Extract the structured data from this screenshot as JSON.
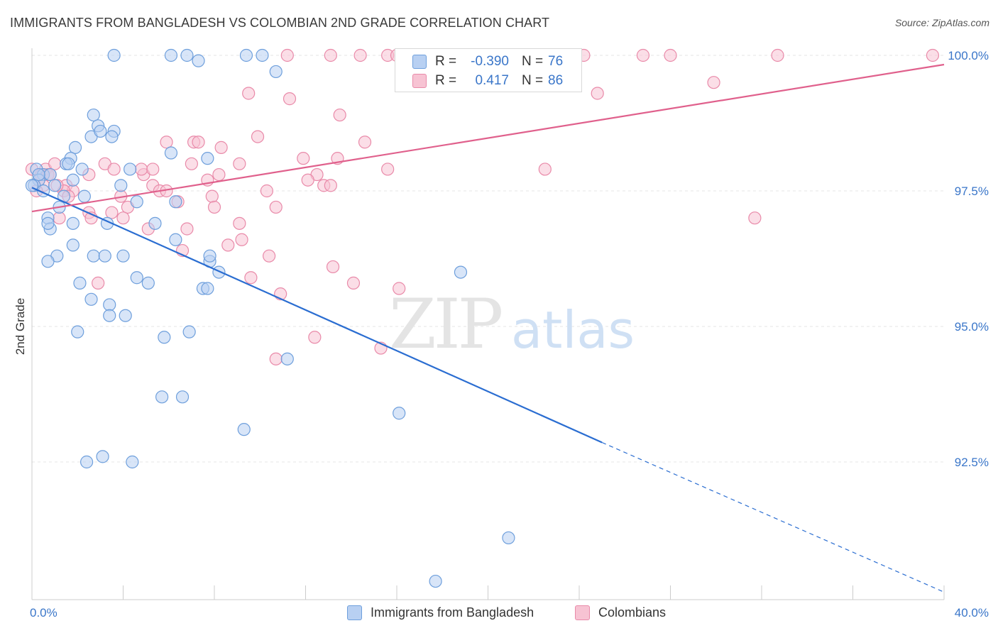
{
  "header": {
    "title": "IMMIGRANTS FROM BANGLADESH VS COLOMBIAN 2ND GRADE CORRELATION CHART",
    "source": "Source: ZipAtlas.com"
  },
  "watermark": {
    "zip": "ZIP",
    "atlas": "atlas"
  },
  "legend_stats": [
    {
      "r_label": "R =",
      "r_value": "-0.390",
      "n_label": "N =",
      "n_value": "76"
    },
    {
      "r_label": "R =",
      "r_value": "0.417",
      "n_label": "N =",
      "n_value": "86"
    }
  ],
  "bottom_legend": [
    "Immigrants from Bangladesh",
    "Colombians"
  ],
  "colors": {
    "blue_fill": "#b8d0f2",
    "blue_stroke": "#6e9fdc",
    "blue_line": "#2a6dd1",
    "pink_fill": "#f7c3d3",
    "pink_stroke": "#e98aa9",
    "pink_line": "#e0608c",
    "axis_label": "#3a76c9",
    "grid": "#e6e6e6"
  },
  "chart_data": {
    "type": "scatter",
    "title": "IMMIGRANTS FROM BANGLADESH VS COLOMBIAN 2ND GRADE CORRELATION CHART",
    "ylabel": "2nd Grade",
    "xlabel": "",
    "xlim": [
      0,
      40
    ],
    "ylim": [
      90.0,
      100.2
    ],
    "x_tick_labels": [
      "0.0%",
      "40.0%"
    ],
    "y_ticks": [
      92.5,
      95.0,
      97.5,
      100.0
    ],
    "y_tick_labels": [
      "92.5%",
      "95.0%",
      "97.5%",
      "100.0%"
    ],
    "grid": true,
    "series": [
      {
        "name": "Immigrants from Bangladesh",
        "color": "#6e9fdc",
        "r": -0.39,
        "n": 76,
        "trend": {
          "x0": 0.0,
          "y0": 97.56,
          "x1": 25.0,
          "y1": 92.86,
          "dash_to_x": 40.0,
          "dash_to_y": 90.1
        },
        "points": [
          [
            3.6,
            100.0
          ],
          [
            6.1,
            100.0
          ],
          [
            6.8,
            100.0
          ],
          [
            9.4,
            100.0
          ],
          [
            10.1,
            100.0
          ],
          [
            7.3,
            99.9
          ],
          [
            10.7,
            99.7
          ],
          [
            2.7,
            98.9
          ],
          [
            2.6,
            98.5
          ],
          [
            2.9,
            98.7
          ],
          [
            3.0,
            98.6
          ],
          [
            3.6,
            98.6
          ],
          [
            3.5,
            98.5
          ],
          [
            1.9,
            98.3
          ],
          [
            1.7,
            98.1
          ],
          [
            1.5,
            98.0
          ],
          [
            1.6,
            98.0
          ],
          [
            6.1,
            98.2
          ],
          [
            7.7,
            98.1
          ],
          [
            0.2,
            97.9
          ],
          [
            0.5,
            97.8
          ],
          [
            0.8,
            97.8
          ],
          [
            2.2,
            97.9
          ],
          [
            4.3,
            97.9
          ],
          [
            0.3,
            97.7
          ],
          [
            0.1,
            97.6
          ],
          [
            0.5,
            97.5
          ],
          [
            1.8,
            97.7
          ],
          [
            3.9,
            97.6
          ],
          [
            1.4,
            97.4
          ],
          [
            2.3,
            97.4
          ],
          [
            1.2,
            97.2
          ],
          [
            4.6,
            97.3
          ],
          [
            6.3,
            97.3
          ],
          [
            0.7,
            97.0
          ],
          [
            1.8,
            96.9
          ],
          [
            3.3,
            96.9
          ],
          [
            5.4,
            96.9
          ],
          [
            0.8,
            96.8
          ],
          [
            0.7,
            96.9
          ],
          [
            1.8,
            96.5
          ],
          [
            6.3,
            96.6
          ],
          [
            1.1,
            96.3
          ],
          [
            0.7,
            96.2
          ],
          [
            2.7,
            96.3
          ],
          [
            3.2,
            96.3
          ],
          [
            4.0,
            96.3
          ],
          [
            7.8,
            96.2
          ],
          [
            7.8,
            96.3
          ],
          [
            8.2,
            96.0
          ],
          [
            18.8,
            96.0
          ],
          [
            4.6,
            95.9
          ],
          [
            5.1,
            95.8
          ],
          [
            2.1,
            95.8
          ],
          [
            7.5,
            95.7
          ],
          [
            7.7,
            95.7
          ],
          [
            2.6,
            95.5
          ],
          [
            3.4,
            95.4
          ],
          [
            4.1,
            95.2
          ],
          [
            3.4,
            95.2
          ],
          [
            2.0,
            94.9
          ],
          [
            6.9,
            94.9
          ],
          [
            5.8,
            94.8
          ],
          [
            11.2,
            94.4
          ],
          [
            5.7,
            93.7
          ],
          [
            6.6,
            93.7
          ],
          [
            16.1,
            93.4
          ],
          [
            9.3,
            93.1
          ],
          [
            3.1,
            92.6
          ],
          [
            2.4,
            92.5
          ],
          [
            4.4,
            92.5
          ],
          [
            20.9,
            91.1
          ],
          [
            17.7,
            90.3
          ],
          [
            0.0,
            97.6
          ],
          [
            0.3,
            97.8
          ],
          [
            1.0,
            97.6
          ]
        ]
      },
      {
        "name": "Colombians",
        "color": "#e98aa9",
        "r": 0.417,
        "n": 86,
        "trend": {
          "x0": 0.0,
          "y0": 97.12,
          "x1": 40.0,
          "y1": 99.83
        },
        "points": [
          [
            11.2,
            100.0
          ],
          [
            13.1,
            100.0
          ],
          [
            14.4,
            100.0
          ],
          [
            15.6,
            100.0
          ],
          [
            16.0,
            100.0
          ],
          [
            18.7,
            100.0
          ],
          [
            24.2,
            100.0
          ],
          [
            26.8,
            100.0
          ],
          [
            28.0,
            100.0
          ],
          [
            32.7,
            100.0
          ],
          [
            39.5,
            100.0
          ],
          [
            9.5,
            99.3
          ],
          [
            11.3,
            99.2
          ],
          [
            24.8,
            99.3
          ],
          [
            29.9,
            99.5
          ],
          [
            13.5,
            98.9
          ],
          [
            5.9,
            98.4
          ],
          [
            7.1,
            98.4
          ],
          [
            7.3,
            98.4
          ],
          [
            9.9,
            98.5
          ],
          [
            14.6,
            98.4
          ],
          [
            8.3,
            98.3
          ],
          [
            13.4,
            98.1
          ],
          [
            11.9,
            98.1
          ],
          [
            7.0,
            98.0
          ],
          [
            9.1,
            98.0
          ],
          [
            22.5,
            97.9
          ],
          [
            15.6,
            97.9
          ],
          [
            12.5,
            97.8
          ],
          [
            0.0,
            97.9
          ],
          [
            0.4,
            97.8
          ],
          [
            0.6,
            97.9
          ],
          [
            0.7,
            97.8
          ],
          [
            2.5,
            97.8
          ],
          [
            3.2,
            98.0
          ],
          [
            3.6,
            97.9
          ],
          [
            4.9,
            97.8
          ],
          [
            4.8,
            97.9
          ],
          [
            5.3,
            97.9
          ],
          [
            8.2,
            97.8
          ],
          [
            12.1,
            97.7
          ],
          [
            12.8,
            97.6
          ],
          [
            13.1,
            97.6
          ],
          [
            7.7,
            97.7
          ],
          [
            1.5,
            97.6
          ],
          [
            1.8,
            97.5
          ],
          [
            1.4,
            97.5
          ],
          [
            5.3,
            97.6
          ],
          [
            5.6,
            97.5
          ],
          [
            5.9,
            97.5
          ],
          [
            10.3,
            97.5
          ],
          [
            7.9,
            97.4
          ],
          [
            1.6,
            97.4
          ],
          [
            3.9,
            97.4
          ],
          [
            6.4,
            97.3
          ],
          [
            10.7,
            97.2
          ],
          [
            2.5,
            97.1
          ],
          [
            3.5,
            97.1
          ],
          [
            4.2,
            97.2
          ],
          [
            8.0,
            97.2
          ],
          [
            4.0,
            97.0
          ],
          [
            31.7,
            97.0
          ],
          [
            1.2,
            97.0
          ],
          [
            9.1,
            96.9
          ],
          [
            5.1,
            96.8
          ],
          [
            6.8,
            96.8
          ],
          [
            9.2,
            96.6
          ],
          [
            8.6,
            96.5
          ],
          [
            13.2,
            96.1
          ],
          [
            10.4,
            96.3
          ],
          [
            6.6,
            96.4
          ],
          [
            2.9,
            95.8
          ],
          [
            9.6,
            95.9
          ],
          [
            14.1,
            95.8
          ],
          [
            16.1,
            95.7
          ],
          [
            10.9,
            95.6
          ],
          [
            12.4,
            94.8
          ],
          [
            15.3,
            94.6
          ],
          [
            10.7,
            94.4
          ],
          [
            0.8,
            97.8
          ],
          [
            0.3,
            97.7
          ],
          [
            1.0,
            98.0
          ],
          [
            2.6,
            97.0
          ],
          [
            0.5,
            97.6
          ],
          [
            1.1,
            97.6
          ],
          [
            0.2,
            97.5
          ]
        ]
      }
    ]
  }
}
